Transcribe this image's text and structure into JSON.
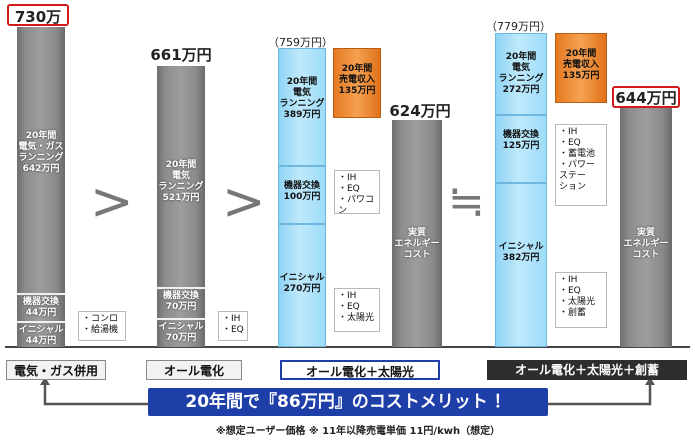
{
  "chart_data": {
    "type": "bar",
    "stacked": true,
    "unit": "万円",
    "categories": [
      "電気・ガス併用",
      "オール電化",
      "オール電化＋太陽光",
      "オール電化＋太陽光＋創蓄"
    ],
    "bars": [
      {
        "category": "電気・ガス併用",
        "total": 730,
        "total_label": "730万円",
        "segments": [
          {
            "lines": [
              "20年間",
              "電気・ガス",
              "ランニング",
              "642万円"
            ],
            "value": 642
          },
          {
            "lines": [
              "機器交換",
              "44万円"
            ],
            "value": 44
          },
          {
            "lines": [
              "イニシャル",
              "44万円"
            ],
            "value": 44
          }
        ],
        "callouts": [
          [
            "・コンロ",
            "・給湯機"
          ]
        ]
      },
      {
        "category": "オール電化",
        "total": 661,
        "total_label": "661万円",
        "segments": [
          {
            "lines": [
              "20年間",
              "電気",
              "ランニング",
              "521万円"
            ],
            "value": 521
          },
          {
            "lines": [
              "機器交換",
              "70万円"
            ],
            "value": 70
          },
          {
            "lines": [
              "イニシャル",
              "70万円"
            ],
            "value": 70
          }
        ],
        "callouts": [
          [
            "・IH",
            "・EQ"
          ]
        ]
      },
      {
        "category": "オール電化＋太陽光",
        "gross_label": "（759万円）",
        "gross": 759,
        "net": 624,
        "net_label": "624万円",
        "net_bar_lines": [
          "実質",
          "エネルギー",
          "コスト"
        ],
        "income": {
          "lines": [
            "20年間",
            "売電収入",
            "135万円"
          ],
          "value": 135
        },
        "segments": [
          {
            "lines": [
              "20年間",
              "電気",
              "ランニング",
              "389万円"
            ],
            "value": 389
          },
          {
            "lines": [
              "機器交換",
              "100万円"
            ],
            "value": 100
          },
          {
            "lines": [
              "イニシャル",
              "270万円"
            ],
            "value": 270
          }
        ],
        "callouts": [
          [
            "・IH",
            "・EQ",
            "・パワコン"
          ],
          [
            "・IH",
            "・EQ",
            "・太陽光"
          ]
        ]
      },
      {
        "category": "オール電化＋太陽光＋創蓄",
        "gross_label": "（779万円）",
        "gross": 779,
        "net": 644,
        "net_label": "644万円",
        "net_bar_lines": [
          "実質",
          "エネルギー",
          "コスト"
        ],
        "income": {
          "lines": [
            "20年間",
            "売電収入",
            "135万円"
          ],
          "value": 135
        },
        "segments": [
          {
            "lines": [
              "20年間",
              "電気",
              "ランニング",
              "272万円"
            ],
            "value": 272
          },
          {
            "lines": [
              "機器交換",
              "125万円"
            ],
            "value": 125
          },
          {
            "lines": [
              "イニシャル",
              "382万円"
            ],
            "value": 382
          }
        ],
        "callouts": [
          [
            "・IH",
            "・EQ",
            "・蓄電池",
            "・パワー",
            "ステー",
            "ション"
          ],
          [
            "・IH",
            "・EQ",
            "・太陽光",
            "・創蓄"
          ]
        ]
      }
    ],
    "comparators": [
      ">",
      ">",
      "≒"
    ],
    "banner": "20年間で『86万円』のコストメリット ！",
    "footnote": "※想定ユーザー価格 ※ 11年以降売電単価 11円/kwh（想定）"
  },
  "colors": {
    "gray_bar": "#8d8d8d",
    "blue_bar": "#bfe9fb",
    "orange_bar": "#f29a4a",
    "banner_bg": "#1f3fa8",
    "highlight_red": "#d11b1b"
  }
}
